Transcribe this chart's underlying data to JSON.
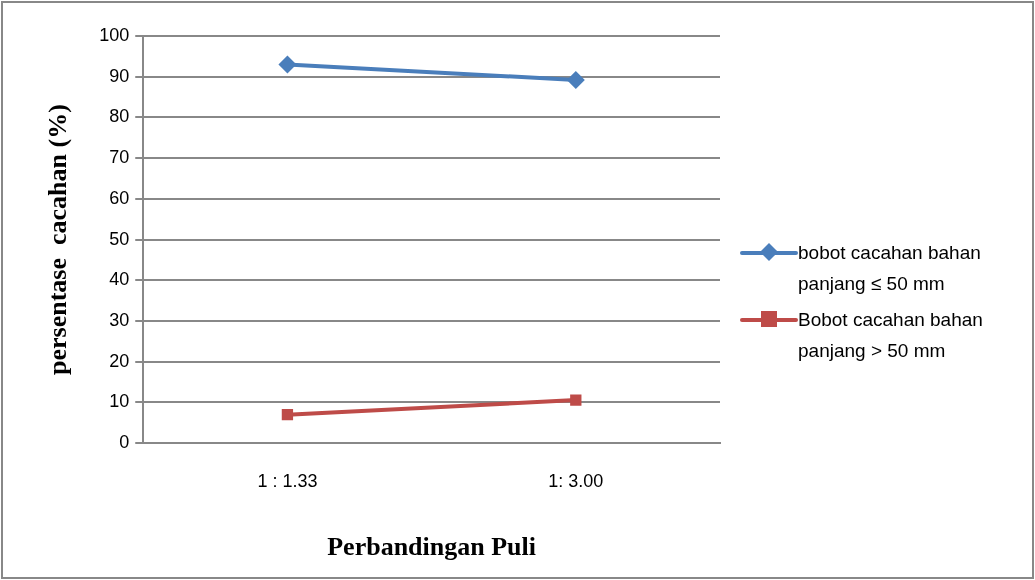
{
  "chart_data": {
    "type": "line",
    "xlabel": "Perbandingan Puli",
    "ylabel": "persentase  cacahan (%)",
    "categories": [
      "1 : 1.33",
      "1: 3.00"
    ],
    "series": [
      {
        "name": "bobot cacahan bahan panjang ≤ 50 mm",
        "color": "#4a7ebb",
        "values": [
          93,
          89.2
        ],
        "marker": "diamond"
      },
      {
        "name": "Bobot cacahan bahan panjang > 50 mm",
        "color": "#be4b48",
        "values": [
          7,
          10.6
        ],
        "marker": "square"
      }
    ],
    "ylim": [
      0,
      100
    ],
    "yticks": [
      0,
      10,
      20,
      30,
      40,
      50,
      60,
      70,
      80,
      90,
      100
    ],
    "grid": "y",
    "legend": "right",
    "line_style": "solid"
  }
}
